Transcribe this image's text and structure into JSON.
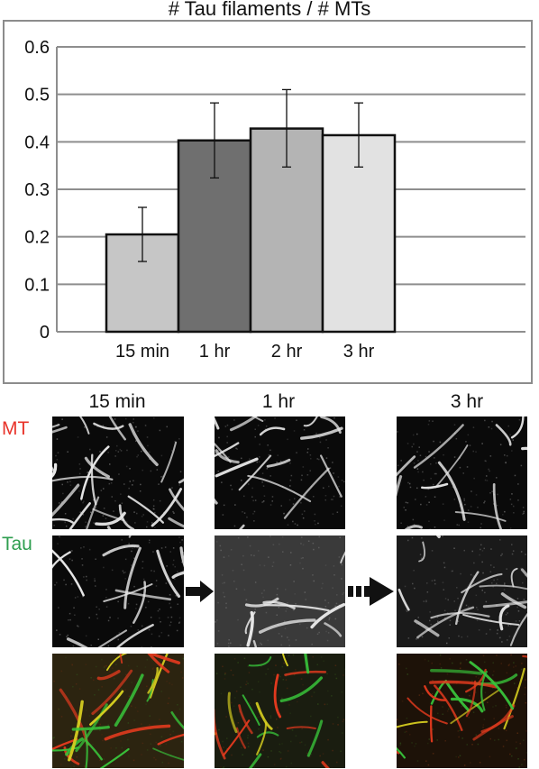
{
  "chart_data": {
    "type": "bar",
    "title": "# Tau filaments / # MTs",
    "categories": [
      "15 min",
      "1 hr",
      "2 hr",
      "3 hr"
    ],
    "values": [
      0.205,
      0.403,
      0.428,
      0.414
    ],
    "error_low": [
      0.148,
      0.324,
      0.347,
      0.347
    ],
    "error_high": [
      0.262,
      0.482,
      0.51,
      0.482
    ],
    "colors": [
      "#c6c6c6",
      "#6f6f6f",
      "#b4b4b4",
      "#e2e2e2"
    ],
    "ylim": [
      0,
      0.6
    ],
    "yticks": [
      "0",
      "0.1",
      "0.2",
      "0.3",
      "0.4",
      "0.5",
      "0.6"
    ],
    "grid": true,
    "xlabel": "",
    "ylabel": ""
  },
  "panels": {
    "columns": [
      "15 min",
      "1 hr",
      "3 hr"
    ],
    "rows": [
      "MT",
      "Tau"
    ],
    "row_colors": {
      "MT": "#e8342b",
      "Tau": "#2e9e4f"
    }
  }
}
